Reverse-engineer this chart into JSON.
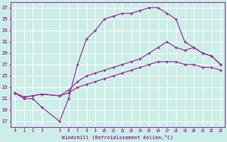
{
  "xlabel": "Windchill (Refroidissement éolien,°C)",
  "bg_color": "#cceee8",
  "grid_color": "#aaddcc",
  "line_color": "#993399",
  "xlim": [
    -0.5,
    23.5
  ],
  "ylim": [
    16,
    38
  ],
  "yticks": [
    17,
    19,
    21,
    23,
    25,
    27,
    29,
    31,
    33,
    35,
    37
  ],
  "xticks": [
    0,
    1,
    2,
    3,
    5,
    6,
    7,
    8,
    9,
    10,
    11,
    12,
    13,
    14,
    15,
    16,
    17,
    18,
    19,
    20,
    21,
    22,
    23
  ],
  "line1_x": [
    0,
    1,
    2,
    3,
    5,
    6,
    7,
    8,
    9,
    10,
    11,
    12,
    13,
    14,
    15,
    16,
    17,
    18,
    19,
    20,
    21,
    22,
    23
  ],
  "line1_y": [
    22,
    21,
    21,
    19.5,
    17,
    21,
    27,
    31.5,
    33,
    35,
    35.5,
    36,
    36,
    36.5,
    37,
    37,
    36,
    35,
    31,
    30,
    29,
    28.5,
    27
  ],
  "line2_x": [
    0,
    1,
    2,
    3,
    5,
    6,
    7,
    8,
    9,
    10,
    11,
    12,
    13,
    14,
    15,
    16,
    17,
    18,
    19,
    20,
    21,
    22,
    23
  ],
  "line2_y": [
    22,
    21.3,
    21.5,
    21.8,
    21.5,
    22.5,
    24,
    25,
    25.5,
    26,
    26.5,
    27,
    27.5,
    28,
    29,
    30,
    31,
    30,
    29.5,
    30,
    29,
    28.5,
    27
  ],
  "line3_x": [
    0,
    1,
    2,
    3,
    5,
    6,
    7,
    8,
    9,
    10,
    11,
    12,
    13,
    14,
    15,
    16,
    17,
    18,
    19,
    20,
    21,
    22,
    23
  ],
  "line3_y": [
    22,
    21.3,
    21.5,
    21.8,
    21.5,
    22,
    23,
    23.5,
    24,
    24.5,
    25,
    25.5,
    26,
    26.5,
    27,
    27.5,
    27.5,
    27.5,
    27,
    27,
    26.5,
    26.5,
    26
  ]
}
